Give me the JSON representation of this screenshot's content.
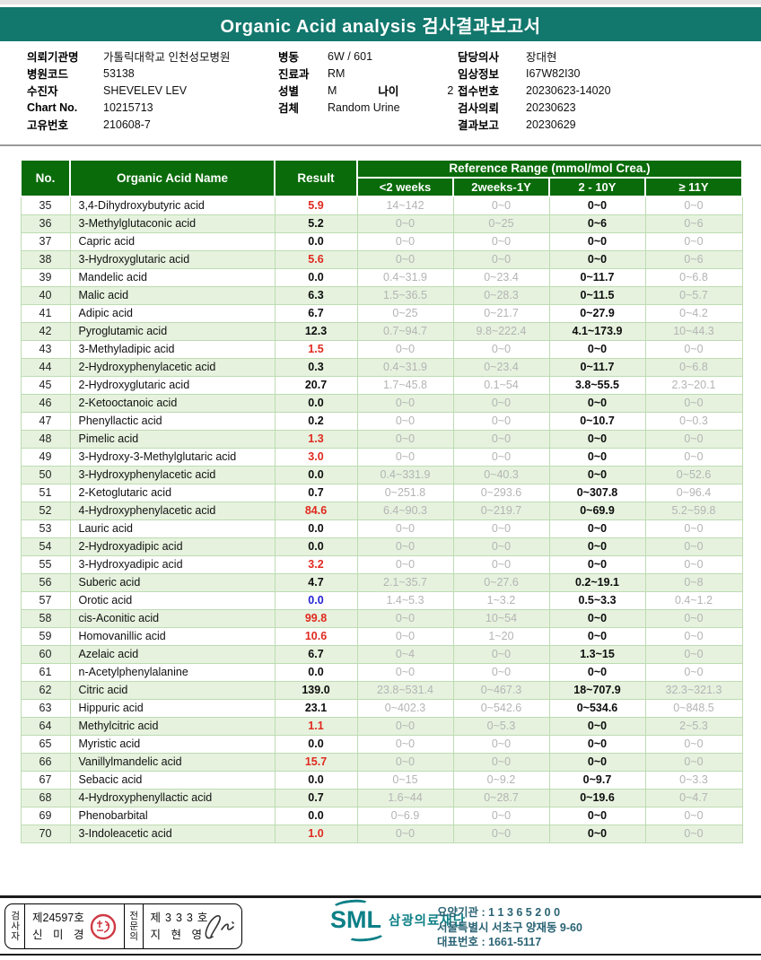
{
  "title": "Organic Acid analysis 검사결과보고서",
  "patient_info": {
    "left": [
      {
        "label": "의뢰기관명",
        "value": "가톨릭대학교 인천성모병원"
      },
      {
        "label": "병원코드",
        "value": "53138"
      },
      {
        "label": "수진자",
        "value": "SHEVELEV LEV"
      },
      {
        "label": "Chart No.",
        "value": "10215713"
      },
      {
        "label": "고유번호",
        "value": "210608-7"
      }
    ],
    "middle": [
      {
        "label": "병동",
        "value": "6W / 601"
      },
      {
        "label": "진료과",
        "value": "RM"
      },
      {
        "label": "성별",
        "value": "M",
        "label2": "나이",
        "value2": "2"
      },
      {
        "label": "검체",
        "value": "Random Urine"
      }
    ],
    "right": [
      {
        "label": "담당의사",
        "value": "장대현"
      },
      {
        "label": "임상정보",
        "value": "I67W82I30"
      },
      {
        "label": "접수번호",
        "value": "20230623-14020"
      },
      {
        "label": "검사의뢰",
        "value": "20230623"
      },
      {
        "label": "결과보고",
        "value": "20230629"
      }
    ]
  },
  "table": {
    "col_no": "No.",
    "col_name": "Organic Acid Name",
    "col_result": "Result",
    "ref_group": "Reference Range (mmol/mol Crea.)",
    "ref_cols": [
      "<2 weeks",
      "2weeks-1Y",
      "2 - 10Y",
      "≥ 11Y"
    ],
    "rows": [
      {
        "no": "35",
        "name": "3,4-Dihydroxybutyric acid",
        "result": "5.9",
        "flag": "high",
        "refs": [
          "14~142",
          "0~0",
          "0~0",
          "0~0"
        ]
      },
      {
        "no": "36",
        "name": "3-Methylglutaconic acid",
        "result": "5.2",
        "flag": "normal",
        "refs": [
          "0~0",
          "0~25",
          "0~6",
          "0~6"
        ]
      },
      {
        "no": "37",
        "name": "Capric acid",
        "result": "0.0",
        "flag": "normal",
        "refs": [
          "0~0",
          "0~0",
          "0~0",
          "0~0"
        ]
      },
      {
        "no": "38",
        "name": "3-Hydroxyglutaric acid",
        "result": "5.6",
        "flag": "high",
        "refs": [
          "0~0",
          "0~0",
          "0~0",
          "0~6"
        ]
      },
      {
        "no": "39",
        "name": "Mandelic acid",
        "result": "0.0",
        "flag": "normal",
        "refs": [
          "0.4~31.9",
          "0~23.4",
          "0~11.7",
          "0~6.8"
        ]
      },
      {
        "no": "40",
        "name": "Malic acid",
        "result": "6.3",
        "flag": "normal",
        "refs": [
          "1.5~36.5",
          "0~28.3",
          "0~11.5",
          "0~5.7"
        ]
      },
      {
        "no": "41",
        "name": "Adipic acid",
        "result": "6.7",
        "flag": "normal",
        "refs": [
          "0~25",
          "0~21.7",
          "0~27.9",
          "0~4.2"
        ]
      },
      {
        "no": "42",
        "name": "Pyroglutamic acid",
        "result": "12.3",
        "flag": "normal",
        "refs": [
          "0.7~94.7",
          "9.8~222.4",
          "4.1~173.9",
          "10~44.3"
        ]
      },
      {
        "no": "43",
        "name": "3-Methyladipic acid",
        "result": "1.5",
        "flag": "high",
        "refs": [
          "0~0",
          "0~0",
          "0~0",
          "0~0"
        ]
      },
      {
        "no": "44",
        "name": "2-Hydroxyphenylacetic acid",
        "result": "0.3",
        "flag": "normal",
        "refs": [
          "0.4~31.9",
          "0~23.4",
          "0~11.7",
          "0~6.8"
        ]
      },
      {
        "no": "45",
        "name": "2-Hydroxyglutaric acid",
        "result": "20.7",
        "flag": "normal",
        "refs": [
          "1.7~45.8",
          "0.1~54",
          "3.8~55.5",
          "2.3~20.1"
        ]
      },
      {
        "no": "46",
        "name": "2-Ketooctanoic acid",
        "result": "0.0",
        "flag": "normal",
        "refs": [
          "0~0",
          "0~0",
          "0~0",
          "0~0"
        ]
      },
      {
        "no": "47",
        "name": "Phenyllactic acid",
        "result": "0.2",
        "flag": "normal",
        "refs": [
          "0~0",
          "0~0",
          "0~10.7",
          "0~0.3"
        ]
      },
      {
        "no": "48",
        "name": "Pimelic acid",
        "result": "1.3",
        "flag": "high",
        "refs": [
          "0~0",
          "0~0",
          "0~0",
          "0~0"
        ]
      },
      {
        "no": "49",
        "name": "3-Hydroxy-3-Methylglutaric acid",
        "result": "3.0",
        "flag": "high",
        "refs": [
          "0~0",
          "0~0",
          "0~0",
          "0~0"
        ]
      },
      {
        "no": "50",
        "name": "3-Hydroxyphenylacetic acid",
        "result": "0.0",
        "flag": "normal",
        "refs": [
          "0.4~331.9",
          "0~40.3",
          "0~0",
          "0~52.6"
        ]
      },
      {
        "no": "51",
        "name": "2-Ketoglutaric acid",
        "result": "0.7",
        "flag": "normal",
        "refs": [
          "0~251.8",
          "0~293.6",
          "0~307.8",
          "0~96.4"
        ]
      },
      {
        "no": "52",
        "name": "4-Hydroxyphenylacetic acid",
        "result": "84.6",
        "flag": "high",
        "refs": [
          "6.4~90.3",
          "0~219.7",
          "0~69.9",
          "5.2~59.8"
        ]
      },
      {
        "no": "53",
        "name": "Lauric acid",
        "result": "0.0",
        "flag": "normal",
        "refs": [
          "0~0",
          "0~0",
          "0~0",
          "0~0"
        ]
      },
      {
        "no": "54",
        "name": "2-Hydroxyadipic acid",
        "result": "0.0",
        "flag": "normal",
        "refs": [
          "0~0",
          "0~0",
          "0~0",
          "0~0"
        ]
      },
      {
        "no": "55",
        "name": "3-Hydroxyadipic acid",
        "result": "3.2",
        "flag": "high",
        "refs": [
          "0~0",
          "0~0",
          "0~0",
          "0~0"
        ]
      },
      {
        "no": "56",
        "name": "Suberic acid",
        "result": "4.7",
        "flag": "normal",
        "refs": [
          "2.1~35.7",
          "0~27.6",
          "0.2~19.1",
          "0~8"
        ]
      },
      {
        "no": "57",
        "name": "Orotic acid",
        "result": "0.0",
        "flag": "low",
        "refs": [
          "1.4~5.3",
          "1~3.2",
          "0.5~3.3",
          "0.4~1.2"
        ]
      },
      {
        "no": "58",
        "name": "cis-Aconitic acid",
        "result": "99.8",
        "flag": "high",
        "refs": [
          "0~0",
          "10~54",
          "0~0",
          "0~0"
        ]
      },
      {
        "no": "59",
        "name": "Homovanillic acid",
        "result": "10.6",
        "flag": "high",
        "refs": [
          "0~0",
          "1~20",
          "0~0",
          "0~0"
        ]
      },
      {
        "no": "60",
        "name": "Azelaic acid",
        "result": "6.7",
        "flag": "normal",
        "refs": [
          "0~4",
          "0~0",
          "1.3~15",
          "0~0"
        ]
      },
      {
        "no": "61",
        "name": "n-Acetylphenylalanine",
        "result": "0.0",
        "flag": "normal",
        "refs": [
          "0~0",
          "0~0",
          "0~0",
          "0~0"
        ]
      },
      {
        "no": "62",
        "name": "Citric acid",
        "result": "139.0",
        "flag": "normal",
        "refs": [
          "23.8~531.4",
          "0~467.3",
          "18~707.9",
          "32.3~321.3"
        ]
      },
      {
        "no": "63",
        "name": "Hippuric acid",
        "result": "23.1",
        "flag": "normal",
        "refs": [
          "0~402.3",
          "0~542.6",
          "0~534.6",
          "0~848.5"
        ]
      },
      {
        "no": "64",
        "name": "Methylcitric acid",
        "result": "1.1",
        "flag": "high",
        "refs": [
          "0~0",
          "0~5.3",
          "0~0",
          "2~5.3"
        ]
      },
      {
        "no": "65",
        "name": "Myristic acid",
        "result": "0.0",
        "flag": "normal",
        "refs": [
          "0~0",
          "0~0",
          "0~0",
          "0~0"
        ]
      },
      {
        "no": "66",
        "name": "Vanillylmandelic acid",
        "result": "15.7",
        "flag": "high",
        "refs": [
          "0~0",
          "0~0",
          "0~0",
          "0~0"
        ]
      },
      {
        "no": "67",
        "name": "Sebacic acid",
        "result": "0.0",
        "flag": "normal",
        "refs": [
          "0~15",
          "0~9.2",
          "0~9.7",
          "0~3.3"
        ]
      },
      {
        "no": "68",
        "name": "4-Hydroxyphenyllactic acid",
        "result": "0.7",
        "flag": "normal",
        "refs": [
          "1.6~44",
          "0~28.7",
          "0~19.6",
          "0~4.7"
        ]
      },
      {
        "no": "69",
        "name": "Phenobarbital",
        "result": "0.0",
        "flag": "normal",
        "refs": [
          "0~6.9",
          "0~0",
          "0~0",
          "0~0"
        ]
      },
      {
        "no": "70",
        "name": "3-Indoleacetic acid",
        "result": "1.0",
        "flag": "high",
        "refs": [
          "0~0",
          "0~0",
          "0~0",
          "0~0"
        ]
      }
    ]
  },
  "footer": {
    "sign_box": {
      "examiner_role": "검사자",
      "examiner_no": "제24597호",
      "examiner_name": "신 미 경",
      "specialist_role": "전문의",
      "specialist_no": "제333호",
      "specialist_name": "지 현 영"
    },
    "logo_text": "SML",
    "org_name": "삼광의료재단",
    "info_lines": [
      "요양기관 : 1 1 3 6 5 2 0 0",
      "서울특별시 서초구 양재동 9-60",
      "대표번호 : 1661-5117"
    ]
  },
  "colors": {
    "header_teal": "#12776d",
    "table_green": "#0a6b0a",
    "row_alt": "#e6f2de",
    "flag_high": "#e02a1f",
    "flag_low": "#2323d4",
    "ref_dim": "#b4b4b4",
    "logo_teal": "#0d8087",
    "footer_text": "#2a6374"
  }
}
